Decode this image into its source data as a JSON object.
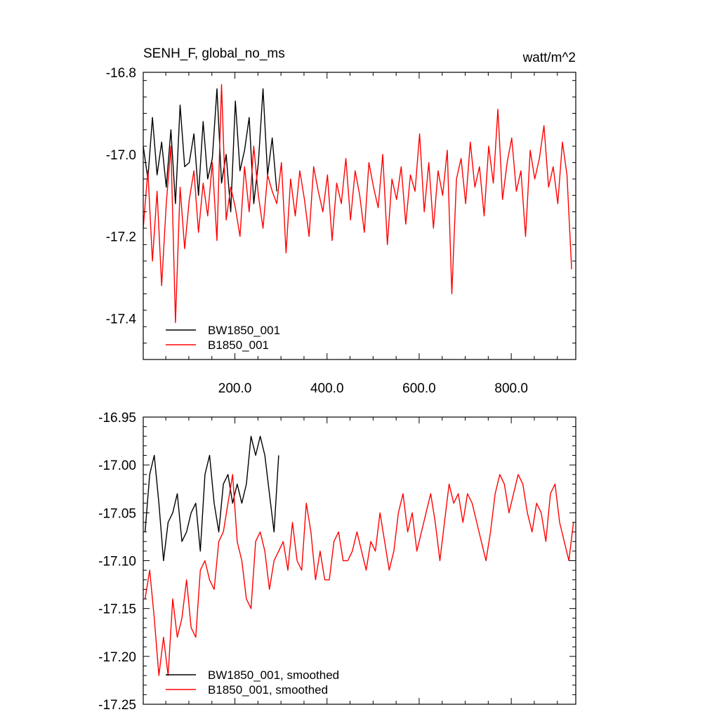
{
  "chart_data": [
    {
      "type": "line",
      "title": "SENH_F, global_no_ms",
      "units": "watt/m^2",
      "xlim": [
        1,
        940
      ],
      "ylim": [
        -17.5,
        -16.8
      ],
      "x_tick_values": [
        200,
        400,
        600,
        800
      ],
      "x_tick_labels": [
        "200.0",
        "400.0",
        "600.0",
        "800.0"
      ],
      "y_tick_values": [
        -16.8,
        -17.0,
        -17.2,
        -17.4
      ],
      "y_tick_labels": [
        "-16.8",
        "-17.0",
        "-17.2",
        "-17.4"
      ],
      "legend_position": "bottom-left",
      "series": [
        {
          "name": "BW1850_001",
          "color": "#000000",
          "x_start": 1,
          "x_step": 10,
          "values": [
            -16.98,
            -17.06,
            -16.91,
            -17.05,
            -16.97,
            -17.08,
            -16.94,
            -17.12,
            -16.88,
            -17.03,
            -17.02,
            -16.95,
            -17.1,
            -16.92,
            -17.06,
            -17.01,
            -16.84,
            -17.07,
            -17.0,
            -17.14,
            -16.87,
            -17.04,
            -16.99,
            -16.91,
            -17.12,
            -17.02,
            -16.84,
            -17.05,
            -16.96,
            -17.09
          ]
        },
        {
          "name": "B1850_001",
          "color": "#ff0000",
          "x_start": 1,
          "x_step": 10,
          "values": [
            -17.18,
            -17.04,
            -17.26,
            -17.09,
            -17.32,
            -17.12,
            -16.98,
            -17.41,
            -17.08,
            -17.23,
            -17.11,
            -17.04,
            -17.19,
            -17.07,
            -17.15,
            -17.02,
            -17.21,
            -16.83,
            -17.16,
            -17.08,
            -17.13,
            -17.2,
            -17.03,
            -17.14,
            -16.98,
            -17.1,
            -17.18,
            -17.05,
            -17.09,
            -17.12,
            -17.02,
            -17.24,
            -17.06,
            -17.15,
            -17.04,
            -17.11,
            -17.2,
            -17.03,
            -17.09,
            -17.14,
            -17.05,
            -17.21,
            -17.07,
            -17.12,
            -17.01,
            -17.16,
            -17.04,
            -17.1,
            -17.19,
            -17.02,
            -17.08,
            -17.13,
            -17.0,
            -17.22,
            -17.06,
            -17.11,
            -17.03,
            -17.17,
            -17.05,
            -17.09,
            -16.95,
            -17.14,
            -17.02,
            -17.18,
            -17.04,
            -17.1,
            -16.99,
            -17.34,
            -17.06,
            -17.01,
            -17.12,
            -16.97,
            -17.08,
            -17.03,
            -17.15,
            -16.98,
            -17.07,
            -16.89,
            -17.11,
            -17.02,
            -16.96,
            -17.09,
            -17.04,
            -17.2,
            -16.99,
            -17.06,
            -17.01,
            -16.93,
            -17.08,
            -17.03,
            -17.12,
            -16.97,
            -17.05,
            -17.28
          ]
        }
      ]
    },
    {
      "type": "line",
      "title": "",
      "xlim": [
        1,
        940
      ],
      "ylim": [
        -17.25,
        -16.95
      ],
      "y_tick_values": [
        -16.95,
        -17.0,
        -17.05,
        -17.1,
        -17.15,
        -17.2,
        -17.25
      ],
      "y_tick_labels": [
        "-16.95",
        "-17.00",
        "-17.05",
        "-17.10",
        "-17.15",
        "-17.20",
        "-17.25"
      ],
      "legend_position": "bottom-left",
      "series": [
        {
          "name": "BW1850_001, smoothed",
          "color": "#000000",
          "x_start": 5,
          "x_step": 10,
          "values": [
            -17.07,
            -17.01,
            -16.99,
            -17.04,
            -17.1,
            -17.06,
            -17.05,
            -17.03,
            -17.08,
            -17.07,
            -17.05,
            -17.04,
            -17.09,
            -17.01,
            -16.99,
            -17.04,
            -17.07,
            -17.02,
            -17.01,
            -17.04,
            -17.02,
            -17.04,
            -17.02,
            -16.97,
            -16.99,
            -16.97,
            -16.99,
            -17.03,
            -17.07,
            -16.99
          ]
        },
        {
          "name": "B1850_001, smoothed",
          "color": "#ff0000",
          "x_start": 5,
          "x_step": 10,
          "values": [
            -17.14,
            -17.11,
            -17.16,
            -17.22,
            -17.18,
            -17.22,
            -17.14,
            -17.18,
            -17.16,
            -17.12,
            -17.17,
            -17.18,
            -17.11,
            -17.1,
            -17.12,
            -17.13,
            -17.08,
            -17.07,
            -17.04,
            -17.01,
            -17.08,
            -17.1,
            -17.14,
            -17.15,
            -17.08,
            -17.07,
            -17.09,
            -17.13,
            -17.1,
            -17.09,
            -17.08,
            -17.11,
            -17.06,
            -17.1,
            -17.11,
            -17.04,
            -17.07,
            -17.12,
            -17.09,
            -17.12,
            -17.12,
            -17.08,
            -17.07,
            -17.1,
            -17.1,
            -17.09,
            -17.07,
            -17.09,
            -17.11,
            -17.08,
            -17.09,
            -17.05,
            -17.08,
            -17.11,
            -17.09,
            -17.05,
            -17.03,
            -17.07,
            -17.05,
            -17.09,
            -17.07,
            -17.05,
            -17.03,
            -17.06,
            -17.1,
            -17.06,
            -17.02,
            -17.04,
            -17.03,
            -17.06,
            -17.03,
            -17.04,
            -17.06,
            -17.08,
            -17.1,
            -17.07,
            -17.03,
            -17.01,
            -17.02,
            -17.05,
            -17.03,
            -17.01,
            -17.02,
            -17.05,
            -17.07,
            -17.04,
            -17.05,
            -17.08,
            -17.03,
            -17.02,
            -17.06,
            -17.08,
            -17.1,
            -17.06
          ]
        }
      ]
    }
  ]
}
